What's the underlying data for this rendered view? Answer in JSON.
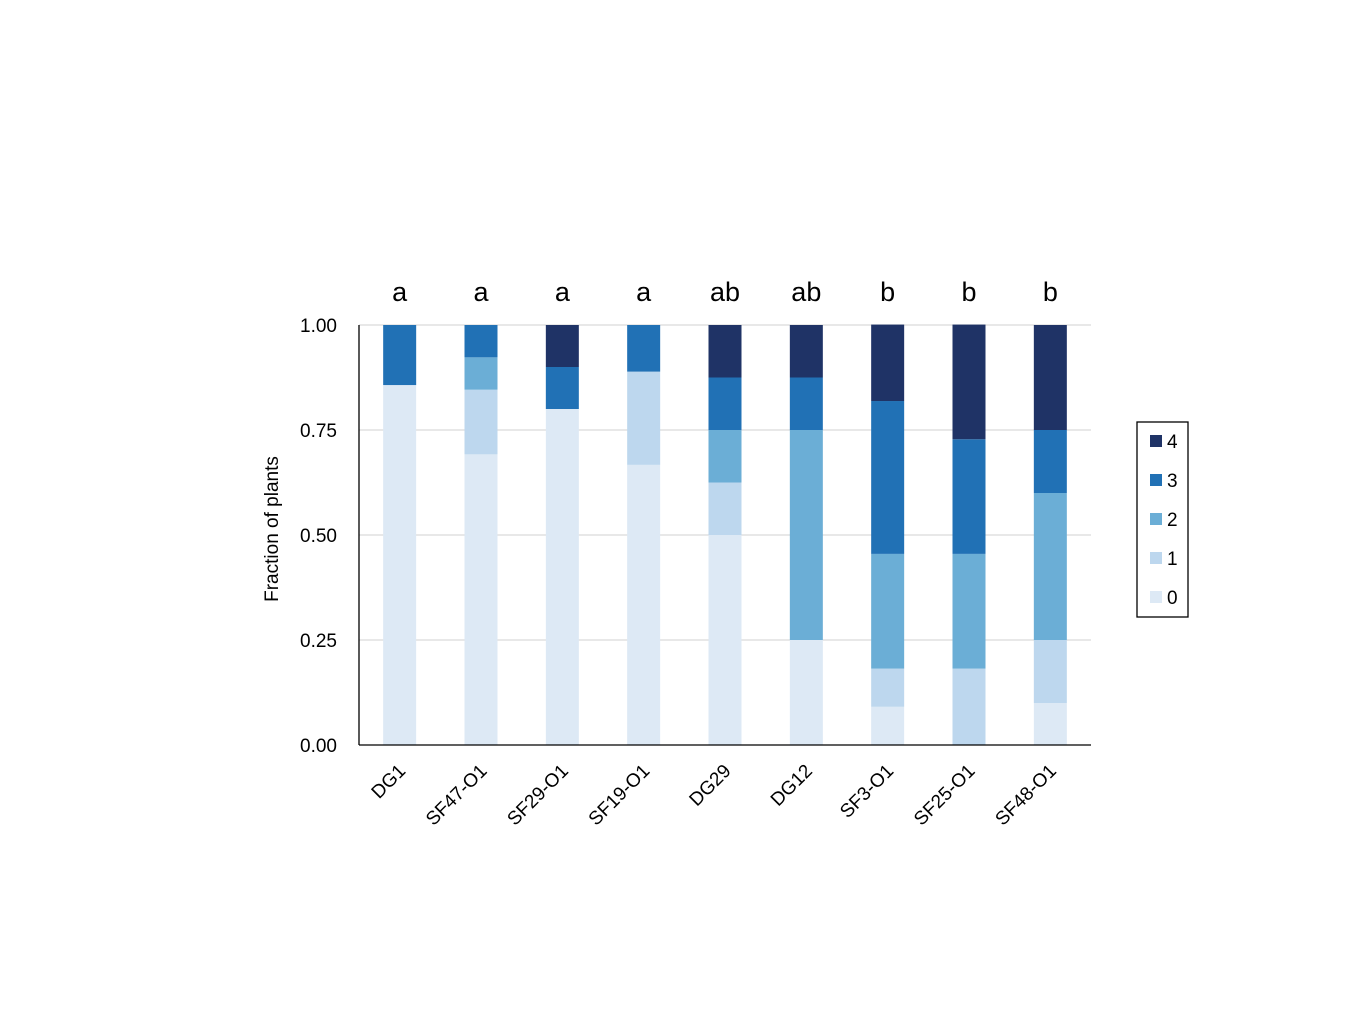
{
  "chart_data": {
    "type": "bar",
    "stacked": true,
    "title": "",
    "xlabel": "",
    "ylabel": "Fraction of plants",
    "ylim": [
      0,
      1
    ],
    "yticks": [
      "0.00",
      "0.25",
      "0.50",
      "0.75",
      "1.00"
    ],
    "grid": true,
    "legend_position": "right",
    "categories": [
      "DG1",
      "SF47-O1",
      "SF29-O1",
      "SF19-O1",
      "DG29",
      "DG12",
      "SF3-O1",
      "SF25-O1",
      "SF48-O1"
    ],
    "significance_letters": [
      "a",
      "a",
      "a",
      "a",
      "ab",
      "ab",
      "b",
      "b",
      "b"
    ],
    "series": [
      {
        "name": "0",
        "color": "#dde9f5",
        "values": [
          0.857,
          0.692,
          0.8,
          0.667,
          0.5,
          0.25,
          0.091,
          0.0,
          0.1
        ]
      },
      {
        "name": "1",
        "color": "#bdd7ee",
        "values": [
          0.0,
          0.154,
          0.0,
          0.222,
          0.125,
          0.0,
          0.091,
          0.182,
          0.15
        ]
      },
      {
        "name": "2",
        "color": "#6baed6",
        "values": [
          0.0,
          0.077,
          0.0,
          0.0,
          0.125,
          0.5,
          0.273,
          0.273,
          0.35
        ]
      },
      {
        "name": "3",
        "color": "#2171b5",
        "values": [
          0.143,
          0.077,
          0.1,
          0.111,
          0.125,
          0.125,
          0.364,
          0.273,
          0.15
        ]
      },
      {
        "name": "4",
        "color": "#1f3366",
        "values": [
          0.0,
          0.0,
          0.1,
          0.0,
          0.125,
          0.125,
          0.182,
          0.273,
          0.25
        ]
      }
    ]
  }
}
